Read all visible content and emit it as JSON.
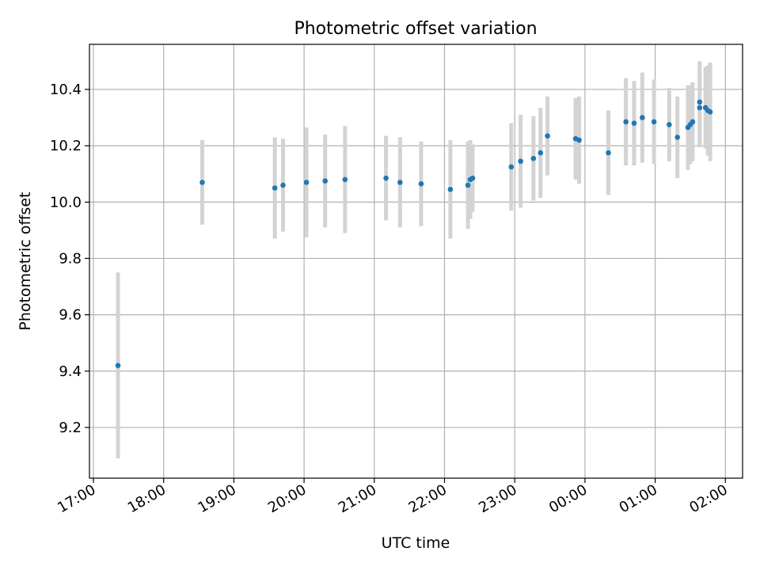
{
  "chart_data": {
    "type": "scatter",
    "title": "Photometric offset variation",
    "xlabel": "UTC time",
    "ylabel": "Photometric offset",
    "x_tick_labels": [
      "17:00",
      "18:00",
      "19:00",
      "20:00",
      "21:00",
      "22:00",
      "23:00",
      "00:00",
      "01:00",
      "02:00"
    ],
    "y_tick_labels": [
      "9.2",
      "9.4",
      "9.6",
      "9.8",
      "10.0",
      "10.2",
      "10.4"
    ],
    "ylim": [
      9.02,
      10.56
    ],
    "xlim": [
      "17:00",
      "02:10"
    ],
    "grid": true,
    "point_color": "#1f77b4",
    "errorbar_color": "#d3d3d3",
    "points": [
      {
        "x": "17:21",
        "y": 9.42,
        "err": 0.33
      },
      {
        "x": "18:33",
        "y": 10.07,
        "err": 0.15
      },
      {
        "x": "19:35",
        "y": 10.05,
        "err": 0.18
      },
      {
        "x": "19:42",
        "y": 10.06,
        "err": 0.165
      },
      {
        "x": "20:02",
        "y": 10.07,
        "err": 0.195
      },
      {
        "x": "20:18",
        "y": 10.075,
        "err": 0.165
      },
      {
        "x": "20:35",
        "y": 10.08,
        "err": 0.19
      },
      {
        "x": "21:10",
        "y": 10.085,
        "err": 0.15
      },
      {
        "x": "21:22",
        "y": 10.07,
        "err": 0.16
      },
      {
        "x": "21:40",
        "y": 10.065,
        "err": 0.15
      },
      {
        "x": "22:05",
        "y": 10.045,
        "err": 0.175
      },
      {
        "x": "22:20",
        "y": 10.06,
        "err": 0.155
      },
      {
        "x": "22:22",
        "y": 10.08,
        "err": 0.14
      },
      {
        "x": "22:24",
        "y": 10.085,
        "err": 0.12
      },
      {
        "x": "22:57",
        "y": 10.125,
        "err": 0.155
      },
      {
        "x": "23:05",
        "y": 10.145,
        "err": 0.165
      },
      {
        "x": "23:16",
        "y": 10.155,
        "err": 0.15
      },
      {
        "x": "23:22",
        "y": 10.175,
        "err": 0.16
      },
      {
        "x": "23:28",
        "y": 10.235,
        "err": 0.14
      },
      {
        "x": "23:52",
        "y": 10.225,
        "err": 0.145
      },
      {
        "x": "23:55",
        "y": 10.22,
        "err": 0.155
      },
      {
        "x": "00:20",
        "y": 10.175,
        "err": 0.15
      },
      {
        "x": "00:35",
        "y": 10.285,
        "err": 0.155
      },
      {
        "x": "00:42",
        "y": 10.28,
        "err": 0.15
      },
      {
        "x": "00:49",
        "y": 10.3,
        "err": 0.16
      },
      {
        "x": "00:59",
        "y": 10.285,
        "err": 0.15
      },
      {
        "x": "01:12",
        "y": 10.275,
        "err": 0.13
      },
      {
        "x": "01:19",
        "y": 10.23,
        "err": 0.145
      },
      {
        "x": "01:28",
        "y": 10.265,
        "err": 0.15
      },
      {
        "x": "01:30",
        "y": 10.275,
        "err": 0.14
      },
      {
        "x": "01:32",
        "y": 10.285,
        "err": 0.14
      },
      {
        "x": "01:38",
        "y": 10.335,
        "err": 0.14
      },
      {
        "x": "01:38",
        "y": 10.355,
        "err": 0.145
      },
      {
        "x": "01:43",
        "y": 10.335,
        "err": 0.145
      },
      {
        "x": "01:45",
        "y": 10.325,
        "err": 0.16
      },
      {
        "x": "01:47",
        "y": 10.32,
        "err": 0.175
      }
    ]
  }
}
